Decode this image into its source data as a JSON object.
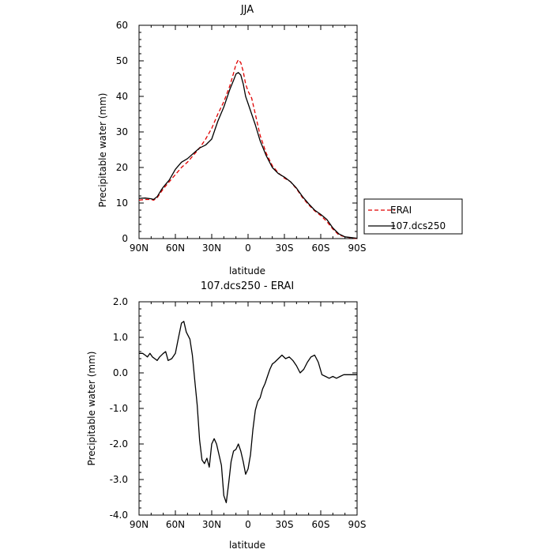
{
  "chart_data": [
    {
      "type": "line",
      "title": "JJA",
      "xlabel": "latitude",
      "ylabel": "Precipitable water (mm)",
      "xlim": [
        90,
        -90
      ],
      "ylim": [
        0,
        60
      ],
      "x_ticks": [
        90,
        60,
        30,
        0,
        -30,
        -60,
        -90
      ],
      "x_tick_labels": [
        "90N",
        "60N",
        "30N",
        "0",
        "30S",
        "60S",
        "90S"
      ],
      "y_ticks": [
        0,
        10,
        20,
        30,
        40,
        50,
        60
      ],
      "y_tick_labels": [
        "0",
        "10",
        "20",
        "30",
        "40",
        "50",
        "60"
      ],
      "grid": false,
      "legend_position": "right",
      "series": [
        {
          "name": "ERAI",
          "color": "#e00000",
          "dash": "dashed",
          "x": [
            90,
            85,
            80,
            78,
            75,
            72,
            70,
            65,
            60,
            55,
            50,
            45,
            40,
            35,
            30,
            25,
            20,
            15,
            12,
            10,
            8,
            6,
            4,
            2,
            0,
            -3,
            -6,
            -10,
            -15,
            -20,
            -25,
            -30,
            -35,
            -40,
            -45,
            -50,
            -55,
            -60,
            -65,
            -70,
            -75,
            -80,
            -85,
            -90
          ],
          "values": [
            10.8,
            11.0,
            11.0,
            10.8,
            11.5,
            13.0,
            14.0,
            16.0,
            18.0,
            20.0,
            21.5,
            23.5,
            25.5,
            28.0,
            31.0,
            35.0,
            38.5,
            43.0,
            46.5,
            49.0,
            50.3,
            49.5,
            47.0,
            43.5,
            41.5,
            39.5,
            35.0,
            29.0,
            24.0,
            20.5,
            18.5,
            17.0,
            16.0,
            14.0,
            11.5,
            9.5,
            7.8,
            6.5,
            4.8,
            2.7,
            1.0,
            0.5,
            0.2,
            0.0
          ]
        },
        {
          "name": "107.dcs250",
          "color": "#000000",
          "dash": "solid",
          "x": [
            90,
            85,
            80,
            78,
            75,
            72,
            70,
            65,
            60,
            55,
            50,
            45,
            40,
            35,
            30,
            25,
            20,
            15,
            12,
            10,
            8,
            6,
            4,
            2,
            0,
            -3,
            -6,
            -10,
            -15,
            -20,
            -25,
            -30,
            -35,
            -40,
            -45,
            -50,
            -55,
            -60,
            -65,
            -70,
            -75,
            -80,
            -85,
            -90
          ],
          "values": [
            11.3,
            11.4,
            11.2,
            11.0,
            11.8,
            13.5,
            14.5,
            16.5,
            19.5,
            21.5,
            22.5,
            24.0,
            25.5,
            26.3,
            28.0,
            33.0,
            37.0,
            42.0,
            44.5,
            46.3,
            46.7,
            46.0,
            43.5,
            40.0,
            38.0,
            35.0,
            32.0,
            27.5,
            23.3,
            20.0,
            18.3,
            17.3,
            16.0,
            14.2,
            11.8,
            9.8,
            8.0,
            6.8,
            5.4,
            3.0,
            1.3,
            0.5,
            0.3,
            0.1
          ]
        }
      ]
    },
    {
      "type": "line",
      "title": "107.dcs250 - ERAI",
      "xlabel": "latitude",
      "ylabel": "Precipitable water (mm)",
      "xlim": [
        90,
        -90
      ],
      "ylim": [
        -4.0,
        2.0
      ],
      "x_ticks": [
        90,
        60,
        30,
        0,
        -30,
        -60,
        -90
      ],
      "x_tick_labels": [
        "90N",
        "60N",
        "30N",
        "0",
        "30S",
        "60S",
        "90S"
      ],
      "y_ticks": [
        2.0,
        1.0,
        0.0,
        -1.0,
        -2.0,
        -3.0,
        -4.0
      ],
      "y_tick_labels": [
        "2.0",
        "1.0",
        "0.0",
        "-1.0",
        "-2.0",
        "-3.0",
        "-4.0"
      ],
      "grid": false,
      "series": [
        {
          "name": "",
          "color": "#000000",
          "dash": "solid",
          "x": [
            90,
            87,
            85,
            83,
            81,
            79,
            77,
            75,
            73,
            70,
            68,
            66,
            63,
            60,
            58,
            55,
            53,
            51,
            48,
            46,
            44,
            42,
            40,
            38,
            36,
            34,
            32,
            30,
            28,
            26,
            24,
            22,
            20,
            18,
            16,
            14,
            12,
            10,
            8,
            6,
            4,
            2,
            0,
            -2,
            -4,
            -6,
            -8,
            -10,
            -12,
            -14,
            -16,
            -18,
            -20,
            -22,
            -25,
            -28,
            -31,
            -34,
            -37,
            -40,
            -43,
            -46,
            -49,
            -52,
            -55,
            -58,
            -61,
            -64,
            -67,
            -70,
            -73,
            -76,
            -79,
            -82,
            -85,
            -88,
            -90
          ],
          "values": [
            0.55,
            0.55,
            0.5,
            0.45,
            0.55,
            0.45,
            0.4,
            0.35,
            0.45,
            0.55,
            0.6,
            0.35,
            0.4,
            0.55,
            0.9,
            1.4,
            1.45,
            1.15,
            0.95,
            0.5,
            -0.2,
            -0.9,
            -1.9,
            -2.45,
            -2.55,
            -2.4,
            -2.65,
            -2.0,
            -1.85,
            -2.0,
            -2.3,
            -2.6,
            -3.45,
            -3.65,
            -3.1,
            -2.5,
            -2.2,
            -2.15,
            -2.0,
            -2.2,
            -2.5,
            -2.85,
            -2.7,
            -2.3,
            -1.6,
            -1.05,
            -0.8,
            -0.7,
            -0.45,
            -0.3,
            -0.1,
            0.1,
            0.25,
            0.3,
            0.4,
            0.5,
            0.4,
            0.45,
            0.35,
            0.2,
            0.0,
            0.1,
            0.3,
            0.45,
            0.5,
            0.3,
            -0.05,
            -0.1,
            -0.15,
            -0.1,
            -0.15,
            -0.1,
            -0.05,
            -0.05,
            -0.05,
            -0.05,
            -0.05
          ]
        }
      ]
    }
  ]
}
